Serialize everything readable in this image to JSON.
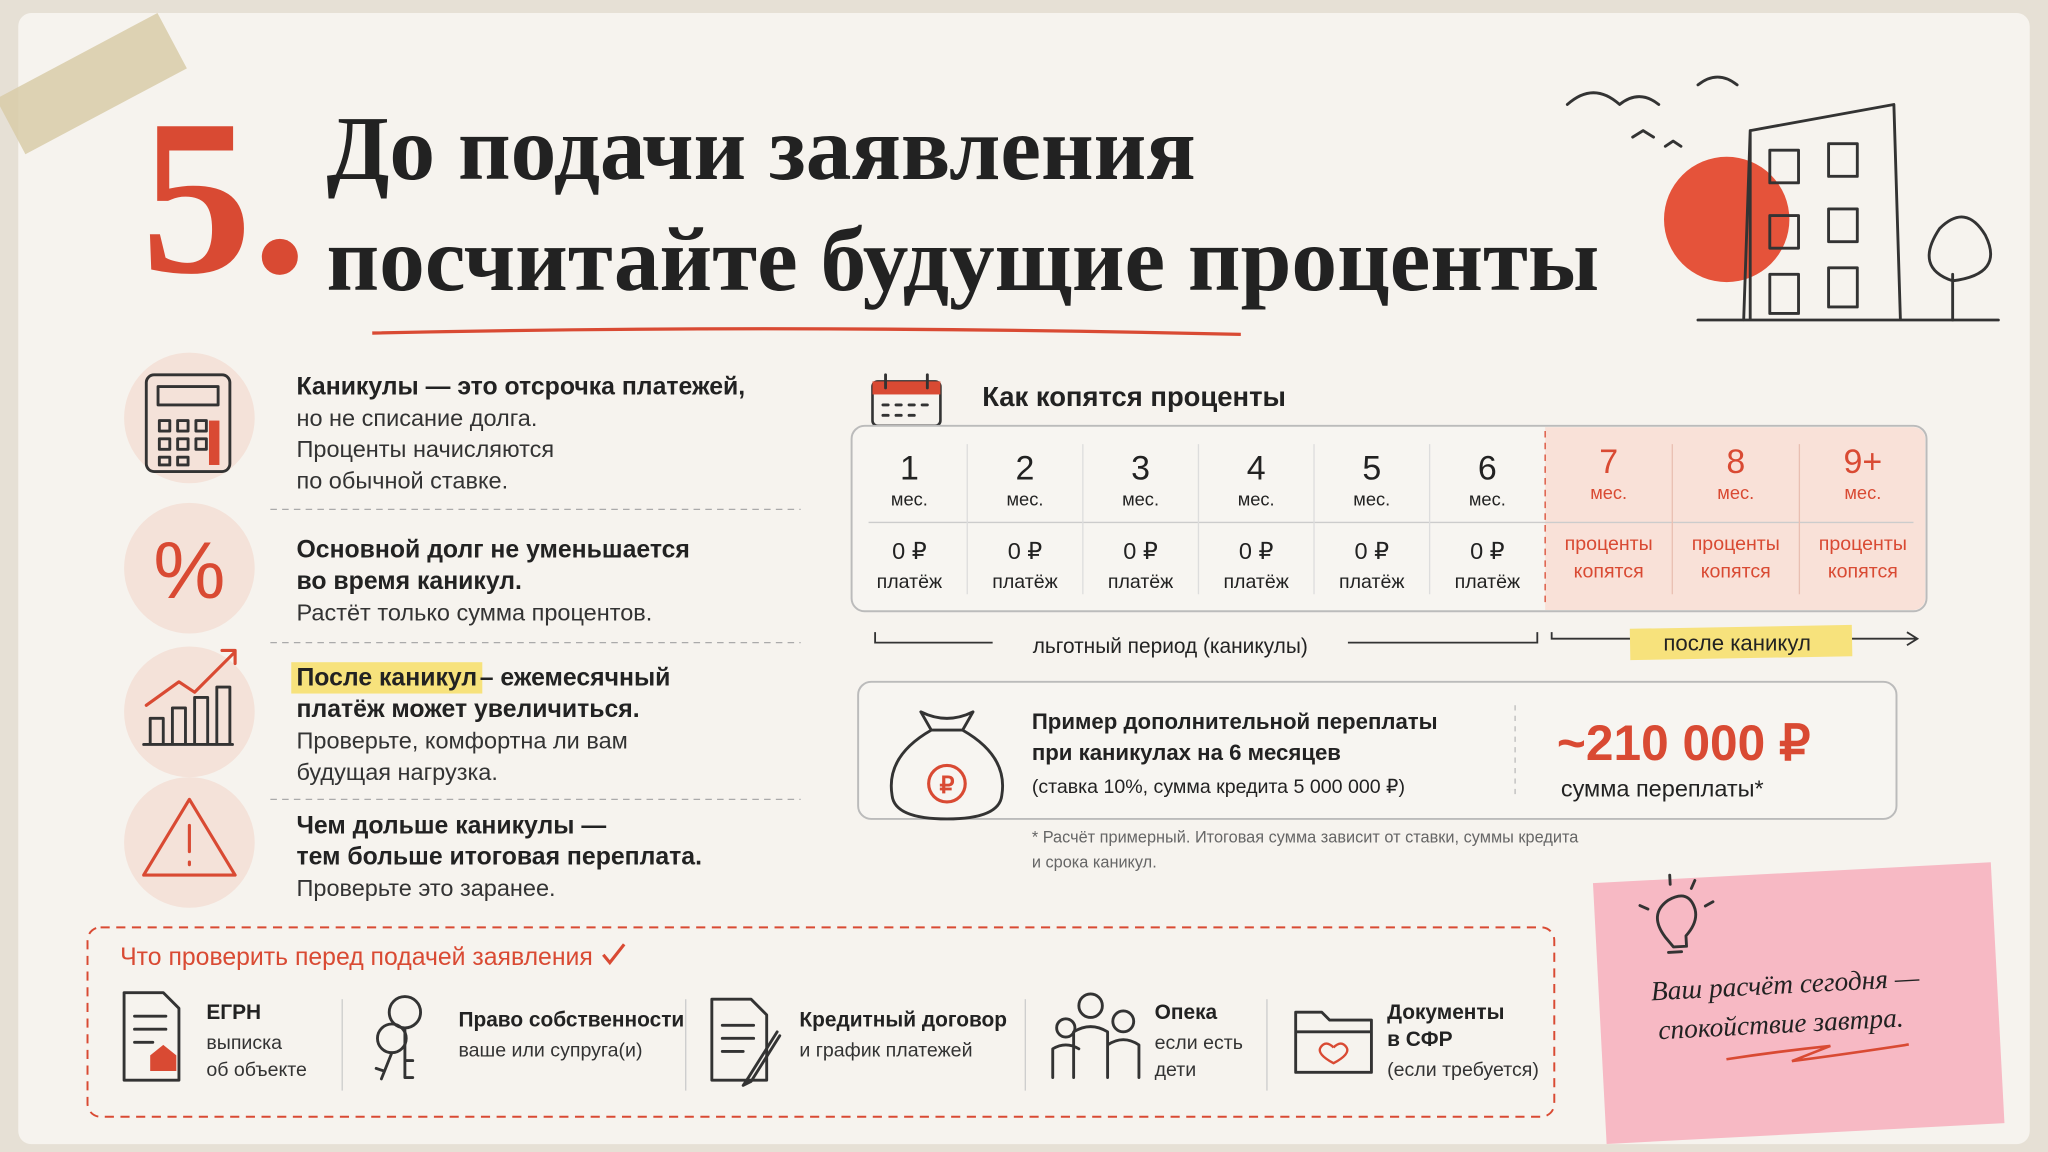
{
  "header": {
    "number": "5.",
    "title_lines": [
      "До подачи заявления",
      "посчитайте будущие проценты"
    ]
  },
  "points": [
    {
      "bold": [
        "Каникулы — это отсрочка платежей,"
      ],
      "text": [
        "но не списание долга.",
        "Проценты начисляются",
        "по обычной ставке."
      ]
    },
    {
      "bold": [
        "Основной долг не уменьшается",
        "во время каникул."
      ],
      "text": [
        "Растёт только сумма процентов."
      ]
    },
    {
      "highlight": "После каникул",
      "bold": [
        "– ежемесячный",
        "платёж может увеличиться."
      ],
      "text": [
        "Проверьте, комфортна ли вам",
        "будущая нагрузка."
      ]
    },
    {
      "bold": [
        "Чем дольше каникулы —",
        "тем больше итоговая переплата."
      ],
      "text": [
        "Проверьте это заранее."
      ]
    }
  ],
  "timeline": {
    "title": "Как копятся проценты",
    "months": [
      {
        "num": "1",
        "unit": "мес.",
        "lines": [
          "0 ₽",
          "платёж"
        ]
      },
      {
        "num": "2",
        "unit": "мес.",
        "lines": [
          "0 ₽",
          "платёж"
        ]
      },
      {
        "num": "3",
        "unit": "мес.",
        "lines": [
          "0 ₽",
          "платёж"
        ]
      },
      {
        "num": "4",
        "unit": "мес.",
        "lines": [
          "0 ₽",
          "платёж"
        ]
      },
      {
        "num": "5",
        "unit": "мес.",
        "lines": [
          "0 ₽",
          "платёж"
        ]
      },
      {
        "num": "6",
        "unit": "мес.",
        "lines": [
          "0 ₽",
          "платёж"
        ]
      },
      {
        "num": "7",
        "unit": "мес.",
        "lines": [
          "проценты",
          "копятся"
        ]
      },
      {
        "num": "8",
        "unit": "мес.",
        "lines": [
          "проценты",
          "копятся"
        ]
      },
      {
        "num": "9+",
        "unit": "мес.",
        "lines": [
          "проценты",
          "копятся"
        ]
      }
    ],
    "grace_label": "льготный период (каникулы)",
    "after_label": "после каникул"
  },
  "example": {
    "title_lines": [
      "Пример дополнительной переплаты",
      "при каникулах на 6 месяцев"
    ],
    "note": "(ставка 10%, сумма кредита 5 000 000 ₽)",
    "amount": "~210 000 ₽",
    "amount_label": "сумма переплаты*",
    "footnote": [
      "* Расчёт примерный. Итоговая сумма зависит от ставки, суммы кредита",
      "и срока каникул."
    ]
  },
  "checklist": {
    "title": "Что проверить перед подачей заявления",
    "items": [
      {
        "title": [
          "ЕГРН"
        ],
        "lines": [
          "выписка",
          "об объекте"
        ]
      },
      {
        "title": [
          "Право собственности"
        ],
        "lines": [
          "ваше или супруга(и)"
        ]
      },
      {
        "title": [
          "Кредитный договор"
        ],
        "lines": [
          "и график платежей"
        ]
      },
      {
        "title": [
          "Опека"
        ],
        "lines": [
          "если есть",
          "дети"
        ]
      },
      {
        "title": [
          "Документы",
          "в СФР"
        ],
        "lines": [
          "(если требуется)"
        ]
      }
    ]
  },
  "sticky": {
    "lines": [
      "Ваш расчёт сегодня —",
      "спокойствие завтра."
    ]
  }
}
